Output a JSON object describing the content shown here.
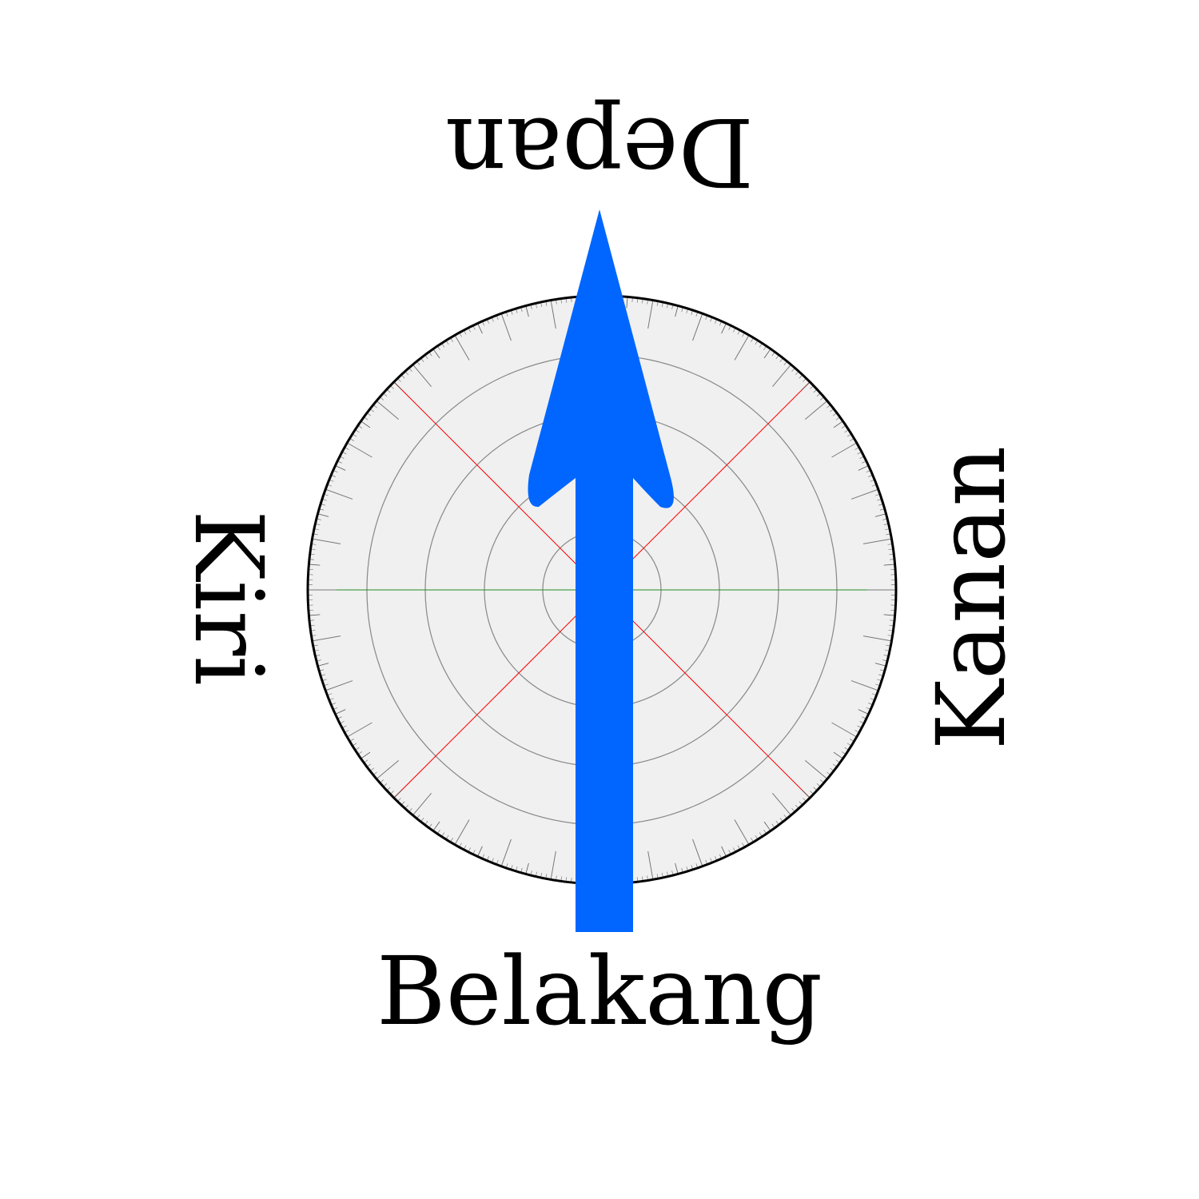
{
  "labels": {
    "front": "Depan",
    "back": "Belakang",
    "left": "Kiri",
    "right": "Kanan"
  },
  "dial": {
    "face_color": "#f0f0f0",
    "rim_color": "#000000",
    "ring_color": "#888888",
    "diagonal_color": "#ff0000",
    "axis_color": "#228b22",
    "minor_tick_degrees": 1,
    "mid_tick_degrees": 5,
    "major_tick_degrees": 10
  },
  "arrow": {
    "icon": "up-arrow-icon",
    "direction": "front",
    "color": "#0066ff"
  }
}
